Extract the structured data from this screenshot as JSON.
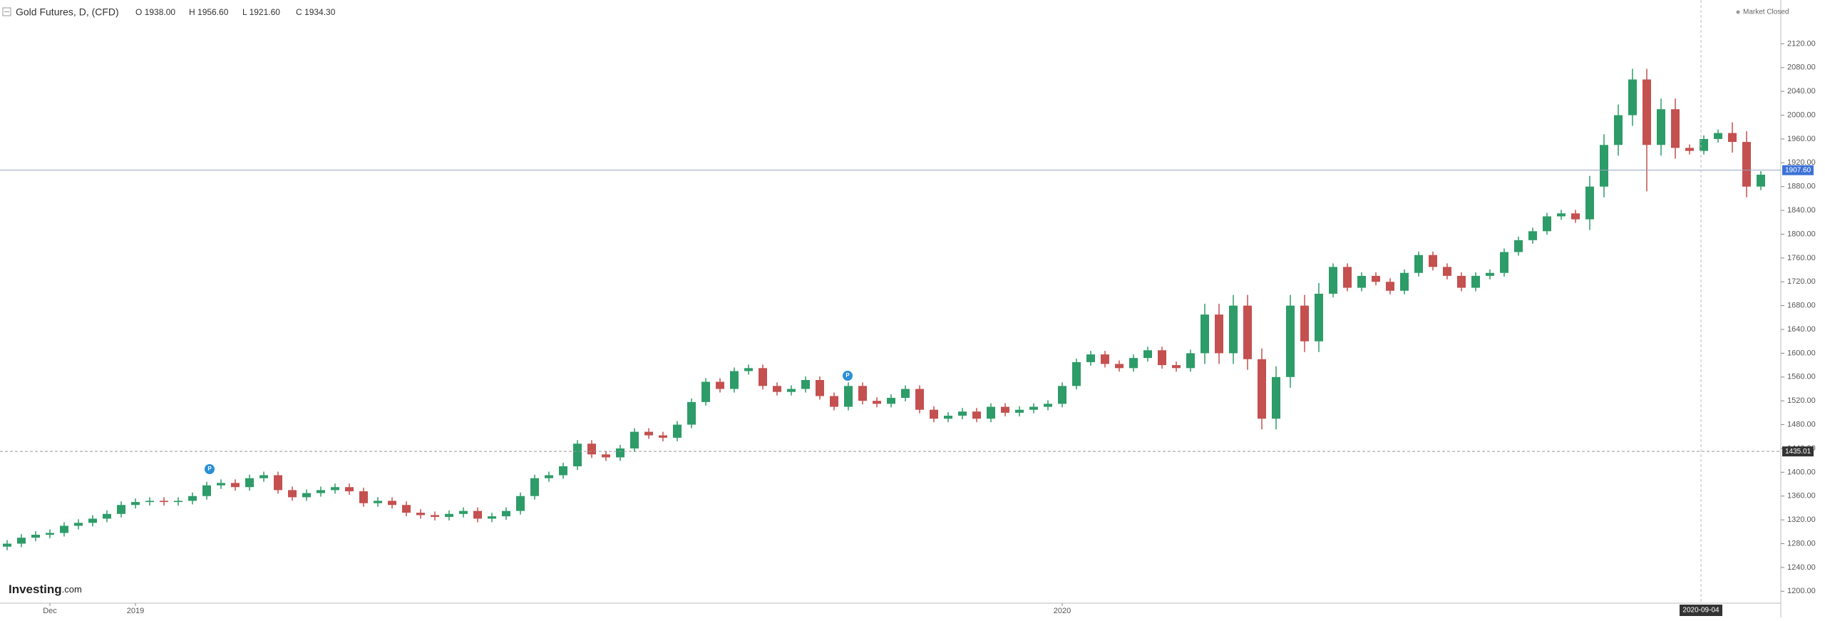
{
  "chart_data": {
    "type": "candlestick",
    "title": "Gold Futures, D, (CFD)",
    "ohlc_header": [
      {
        "key": "O",
        "value": "1938.00"
      },
      {
        "key": "H",
        "value": "1956.60"
      },
      {
        "key": "L",
        "value": "1921.60"
      },
      {
        "key": "C",
        "value": "1934.30"
      }
    ],
    "status": "Market Closed",
    "logo": "Investing",
    "logo_suffix": ".com",
    "up_color": "#2d9c68",
    "down_color": "#c4504f",
    "ylim": [
      1180,
      2160
    ],
    "yticks": [
      {
        "value": 1200,
        "label": "1200.00"
      },
      {
        "value": 1240,
        "label": "1240.00"
      },
      {
        "value": 1280,
        "label": "1280.00"
      },
      {
        "value": 1320,
        "label": "1320.00"
      },
      {
        "value": 1360,
        "label": "1360.00"
      },
      {
        "value": 1400,
        "label": "1400.00"
      },
      {
        "value": 1440,
        "label": "1440.00"
      },
      {
        "value": 1480,
        "label": "1480.00"
      },
      {
        "value": 1520,
        "label": "1520.00"
      },
      {
        "value": 1560,
        "label": "1560.00"
      },
      {
        "value": 1600,
        "label": "1600.00"
      },
      {
        "value": 1640,
        "label": "1640.00"
      },
      {
        "value": 1680,
        "label": "1680.00"
      },
      {
        "value": 1720,
        "label": "1720.00"
      },
      {
        "value": 1760,
        "label": "1760.00"
      },
      {
        "value": 1800,
        "label": "1800.00"
      },
      {
        "value": 1840,
        "label": "1840.00"
      },
      {
        "value": 1880,
        "label": "1880.00"
      },
      {
        "value": 1920,
        "label": "1920.00"
      },
      {
        "value": 1960,
        "label": "1960.00"
      },
      {
        "value": 2000,
        "label": "2000.00"
      },
      {
        "value": 2040,
        "label": "2040.00"
      },
      {
        "value": 2080,
        "label": "2080.00"
      },
      {
        "value": 2120,
        "label": "2120.00"
      }
    ],
    "last_price": {
      "value": 1907.6,
      "label": "1907.60"
    },
    "crosshair": {
      "value": 1435.01,
      "x_label": "2020-09-04"
    },
    "categories": [
      null,
      null,
      null,
      "Dec",
      null,
      null,
      null,
      null,
      null,
      "2019",
      null,
      null,
      null,
      null,
      null,
      null,
      null,
      null,
      null,
      null,
      null,
      null,
      null,
      null,
      null,
      null,
      null,
      null,
      null,
      null,
      null,
      null,
      null,
      null,
      null,
      null,
      null,
      null,
      null,
      null,
      null,
      null,
      null,
      null,
      null,
      null,
      null,
      null,
      null,
      null,
      null,
      null,
      null,
      null,
      null,
      null,
      null,
      null,
      null,
      null,
      null,
      null,
      null,
      null,
      null,
      null,
      null,
      null,
      null,
      null,
      null,
      null,
      null,
      null,
      "2020",
      null,
      null,
      null,
      null,
      null,
      null,
      null,
      null,
      null,
      null,
      null,
      null,
      null,
      null,
      null,
      null,
      null,
      null,
      null,
      null,
      null,
      null,
      null,
      null,
      null,
      null,
      null,
      null,
      null,
      null,
      null,
      null,
      null,
      null,
      null,
      null,
      null,
      null,
      null,
      null,
      null,
      null,
      null,
      null,
      null,
      null,
      null,
      null,
      null
    ],
    "open": [
      1275,
      1280,
      1290,
      1295,
      1298,
      1310,
      1315,
      1322,
      1330,
      1345,
      1350,
      1352,
      1350,
      1352,
      1360,
      1378,
      1382,
      1375,
      1390,
      1395,
      1370,
      1358,
      1365,
      1370,
      1375,
      1368,
      1348,
      1352,
      1345,
      1332,
      1328,
      1325,
      1330,
      1335,
      1322,
      1326,
      1335,
      1360,
      1390,
      1395,
      1410,
      1448,
      1430,
      1425,
      1440,
      1468,
      1462,
      1458,
      1480,
      1518,
      1552,
      1540,
      1570,
      1575,
      1545,
      1535,
      1540,
      1555,
      1528,
      1510,
      1545,
      1520,
      1515,
      1525,
      1540,
      1505,
      1490,
      1495,
      1502,
      1490,
      1510,
      1500,
      1505,
      1510,
      1515,
      1545,
      1585,
      1598,
      1582,
      1575,
      1592,
      1605,
      1580,
      1575,
      1600,
      1665,
      1600,
      1680,
      1590,
      1490,
      1560,
      1680,
      1620,
      1700,
      1745,
      1710,
      1730,
      1720,
      1705,
      1735,
      1765,
      1745,
      1730,
      1710,
      1730,
      1735,
      1770,
      1790,
      1805,
      1830,
      1835,
      1825,
      1880,
      1950,
      2000,
      2060,
      1950,
      2010,
      1945,
      1940,
      1960,
      1970,
      1955,
      1880
    ],
    "high": [
      1286,
      1296,
      1301,
      1304,
      1316,
      1321,
      1328,
      1336,
      1351,
      1356,
      1358,
      1358,
      1358,
      1366,
      1384,
      1388,
      1388,
      1396,
      1401,
      1401,
      1376,
      1371,
      1376,
      1381,
      1381,
      1374,
      1358,
      1358,
      1351,
      1338,
      1334,
      1336,
      1341,
      1341,
      1332,
      1341,
      1366,
      1396,
      1401,
      1416,
      1454,
      1454,
      1436,
      1446,
      1474,
      1474,
      1468,
      1486,
      1524,
      1558,
      1558,
      1576,
      1581,
      1581,
      1551,
      1546,
      1561,
      1561,
      1534,
      1551,
      1551,
      1526,
      1531,
      1546,
      1546,
      1511,
      1501,
      1508,
      1508,
      1516,
      1516,
      1511,
      1516,
      1521,
      1551,
      1591,
      1604,
      1604,
      1588,
      1598,
      1611,
      1611,
      1586,
      1606,
      1683,
      1683,
      1698,
      1698,
      1608,
      1578,
      1698,
      1698,
      1718,
      1751,
      1751,
      1736,
      1736,
      1726,
      1741,
      1771,
      1771,
      1751,
      1736,
      1736,
      1741,
      1776,
      1796,
      1811,
      1836,
      1841,
      1841,
      1898,
      1968,
      2018,
      2078,
      2078,
      2028,
      2028,
      1951,
      1966,
      1976,
      1988,
      1973,
      1906
    ],
    "low": [
      1269,
      1274,
      1284,
      1289,
      1292,
      1304,
      1309,
      1316,
      1324,
      1339,
      1344,
      1344,
      1344,
      1346,
      1354,
      1372,
      1369,
      1369,
      1384,
      1364,
      1352,
      1352,
      1359,
      1364,
      1362,
      1342,
      1342,
      1339,
      1326,
      1322,
      1319,
      1319,
      1324,
      1316,
      1316,
      1320,
      1329,
      1354,
      1384,
      1389,
      1404,
      1424,
      1419,
      1419,
      1434,
      1456,
      1452,
      1452,
      1474,
      1512,
      1534,
      1534,
      1564,
      1539,
      1529,
      1529,
      1534,
      1522,
      1504,
      1504,
      1514,
      1509,
      1509,
      1519,
      1499,
      1484,
      1484,
      1489,
      1484,
      1484,
      1494,
      1494,
      1499,
      1504,
      1509,
      1539,
      1579,
      1576,
      1569,
      1569,
      1586,
      1574,
      1569,
      1569,
      1582,
      1582,
      1582,
      1572,
      1472,
      1472,
      1542,
      1602,
      1602,
      1694,
      1704,
      1704,
      1714,
      1699,
      1699,
      1729,
      1739,
      1724,
      1704,
      1704,
      1724,
      1729,
      1764,
      1784,
      1799,
      1824,
      1819,
      1807,
      1862,
      1932,
      1982,
      1872,
      1932,
      1927,
      1934,
      1934,
      1954,
      1937,
      1862,
      1874
    ],
    "close": [
      1280,
      1290,
      1295,
      1298,
      1310,
      1315,
      1322,
      1330,
      1345,
      1350,
      1352,
      1350,
      1352,
      1360,
      1378,
      1382,
      1375,
      1390,
      1395,
      1370,
      1358,
      1365,
      1370,
      1375,
      1368,
      1348,
      1352,
      1345,
      1332,
      1328,
      1325,
      1330,
      1335,
      1322,
      1326,
      1335,
      1360,
      1390,
      1395,
      1410,
      1448,
      1430,
      1425,
      1440,
      1468,
      1462,
      1458,
      1480,
      1518,
      1552,
      1540,
      1570,
      1575,
      1545,
      1535,
      1540,
      1555,
      1528,
      1510,
      1545,
      1520,
      1515,
      1525,
      1540,
      1505,
      1490,
      1495,
      1502,
      1490,
      1510,
      1500,
      1505,
      1510,
      1515,
      1545,
      1585,
      1598,
      1582,
      1575,
      1592,
      1605,
      1580,
      1575,
      1600,
      1665,
      1600,
      1680,
      1590,
      1490,
      1560,
      1680,
      1620,
      1700,
      1745,
      1710,
      1730,
      1720,
      1705,
      1735,
      1765,
      1745,
      1730,
      1710,
      1730,
      1735,
      1770,
      1790,
      1805,
      1830,
      1835,
      1825,
      1880,
      1950,
      2000,
      2060,
      1950,
      2010,
      1945,
      1940,
      1960,
      1970,
      1955,
      1880,
      1900
    ]
  }
}
